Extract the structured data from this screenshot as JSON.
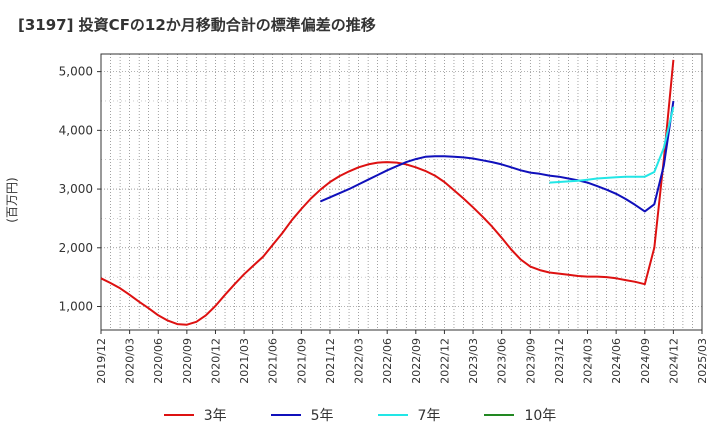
{
  "title": "[3197]  投資CFの12か月移動合計の標準偏差の推移",
  "chart_data": {
    "type": "line",
    "title": "[3197]  投資CFの12か月移動合計の標準偏差の推移",
    "ylabel": "(百万円)",
    "xlabel": "",
    "x_tick_labels": [
      "2019/12",
      "2020/03",
      "2020/06",
      "2020/09",
      "2020/12",
      "2021/03",
      "2021/06",
      "2021/09",
      "2021/12",
      "2022/03",
      "2022/06",
      "2022/09",
      "2022/12",
      "2023/03",
      "2023/06",
      "2023/09",
      "2023/12",
      "2024/03",
      "2024/06",
      "2024/09",
      "2024/12",
      "2025/03"
    ],
    "y_tick_labels": [
      "1,000",
      "2,000",
      "3,000",
      "4,000",
      "5,000"
    ],
    "y_ticks": [
      1000,
      2000,
      3000,
      4000,
      5000
    ],
    "ylim": [
      600,
      5300
    ],
    "xlim": [
      "2019/12",
      "2025/03"
    ],
    "grid": true,
    "legend_position": "bottom",
    "series": [
      {
        "name": "3年",
        "color": "#dd1111",
        "points": [
          [
            "2019/12",
            1480
          ],
          [
            "2020/01",
            1400
          ],
          [
            "2020/02",
            1310
          ],
          [
            "2020/03",
            1200
          ],
          [
            "2020/04",
            1080
          ],
          [
            "2020/05",
            970
          ],
          [
            "2020/06",
            850
          ],
          [
            "2020/07",
            760
          ],
          [
            "2020/08",
            700
          ],
          [
            "2020/09",
            690
          ],
          [
            "2020/10",
            740
          ],
          [
            "2020/11",
            850
          ],
          [
            "2020/12",
            1010
          ],
          [
            "2021/01",
            1200
          ],
          [
            "2021/02",
            1380
          ],
          [
            "2021/03",
            1550
          ],
          [
            "2021/04",
            1700
          ],
          [
            "2021/05",
            1850
          ],
          [
            "2021/06",
            2050
          ],
          [
            "2021/07",
            2250
          ],
          [
            "2021/08",
            2470
          ],
          [
            "2021/09",
            2660
          ],
          [
            "2021/10",
            2840
          ],
          [
            "2021/11",
            2990
          ],
          [
            "2021/12",
            3120
          ],
          [
            "2022/01",
            3220
          ],
          [
            "2022/02",
            3300
          ],
          [
            "2022/03",
            3370
          ],
          [
            "2022/04",
            3420
          ],
          [
            "2022/05",
            3450
          ],
          [
            "2022/06",
            3460
          ],
          [
            "2022/07",
            3450
          ],
          [
            "2022/08",
            3420
          ],
          [
            "2022/09",
            3370
          ],
          [
            "2022/10",
            3310
          ],
          [
            "2022/11",
            3230
          ],
          [
            "2022/12",
            3120
          ],
          [
            "2023/01",
            2980
          ],
          [
            "2023/02",
            2840
          ],
          [
            "2023/03",
            2690
          ],
          [
            "2023/04",
            2530
          ],
          [
            "2023/05",
            2360
          ],
          [
            "2023/06",
            2170
          ],
          [
            "2023/07",
            1970
          ],
          [
            "2023/08",
            1800
          ],
          [
            "2023/09",
            1680
          ],
          [
            "2023/10",
            1620
          ],
          [
            "2023/11",
            1580
          ],
          [
            "2023/12",
            1560
          ],
          [
            "2024/01",
            1540
          ],
          [
            "2024/02",
            1520
          ],
          [
            "2024/03",
            1510
          ],
          [
            "2024/04",
            1510
          ],
          [
            "2024/05",
            1500
          ],
          [
            "2024/06",
            1480
          ],
          [
            "2024/07",
            1450
          ],
          [
            "2024/08",
            1420
          ],
          [
            "2024/09",
            1380
          ],
          [
            "2024/10",
            2000
          ],
          [
            "2024/11",
            3500
          ],
          [
            "2024/12",
            5200
          ]
        ]
      },
      {
        "name": "5年",
        "color": "#1010bb",
        "points": [
          [
            "2021/11",
            2790
          ],
          [
            "2021/12",
            2860
          ],
          [
            "2022/01",
            2930
          ],
          [
            "2022/02",
            3000
          ],
          [
            "2022/03",
            3080
          ],
          [
            "2022/04",
            3160
          ],
          [
            "2022/05",
            3240
          ],
          [
            "2022/06",
            3320
          ],
          [
            "2022/07",
            3390
          ],
          [
            "2022/08",
            3460
          ],
          [
            "2022/09",
            3510
          ],
          [
            "2022/10",
            3550
          ],
          [
            "2022/11",
            3560
          ],
          [
            "2022/12",
            3560
          ],
          [
            "2023/01",
            3550
          ],
          [
            "2023/02",
            3540
          ],
          [
            "2023/03",
            3520
          ],
          [
            "2023/04",
            3490
          ],
          [
            "2023/05",
            3460
          ],
          [
            "2023/06",
            3420
          ],
          [
            "2023/07",
            3370
          ],
          [
            "2023/08",
            3320
          ],
          [
            "2023/09",
            3280
          ],
          [
            "2023/10",
            3260
          ],
          [
            "2023/11",
            3230
          ],
          [
            "2023/12",
            3210
          ],
          [
            "2024/01",
            3180
          ],
          [
            "2024/02",
            3150
          ],
          [
            "2024/03",
            3110
          ],
          [
            "2024/04",
            3050
          ],
          [
            "2024/05",
            2990
          ],
          [
            "2024/06",
            2920
          ],
          [
            "2024/07",
            2830
          ],
          [
            "2024/08",
            2730
          ],
          [
            "2024/09",
            2620
          ],
          [
            "2024/10",
            2740
          ],
          [
            "2024/11",
            3400
          ],
          [
            "2024/12",
            4500
          ]
        ]
      },
      {
        "name": "7年",
        "color": "#22e6e6",
        "points": [
          [
            "2023/11",
            3110
          ],
          [
            "2023/12",
            3120
          ],
          [
            "2024/01",
            3130
          ],
          [
            "2024/02",
            3140
          ],
          [
            "2024/03",
            3160
          ],
          [
            "2024/04",
            3180
          ],
          [
            "2024/05",
            3190
          ],
          [
            "2024/06",
            3200
          ],
          [
            "2024/07",
            3210
          ],
          [
            "2024/08",
            3210
          ],
          [
            "2024/09",
            3210
          ],
          [
            "2024/10",
            3290
          ],
          [
            "2024/11",
            3700
          ],
          [
            "2024/12",
            4400
          ]
        ]
      },
      {
        "name": "10年",
        "color": "#228822",
        "points": []
      }
    ]
  }
}
